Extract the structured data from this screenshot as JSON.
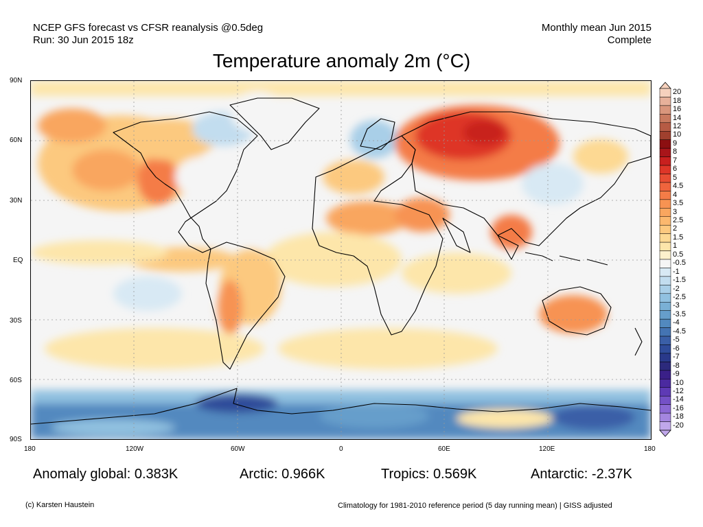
{
  "header": {
    "line1": "NCEP GFS forecast vs CFSR reanalysis @0.5deg",
    "line2": "Run: 30 Jun 2015 18z",
    "right1": "Monthly mean Jun 2015",
    "right2": "Complete"
  },
  "title": "Temperature anomaly 2m (°C)",
  "map": {
    "lat_labels": [
      "90N",
      "60N",
      "30N",
      "EQ",
      "30S",
      "60S",
      "90S"
    ],
    "lon_labels": [
      "180",
      "120W",
      "60W",
      "0",
      "60E",
      "120E",
      "180"
    ]
  },
  "colorbar": {
    "labels": [
      "20",
      "18",
      "16",
      "14",
      "12",
      "10",
      "9",
      "8",
      "7",
      "6",
      "5",
      "4.5",
      "4",
      "3.5",
      "3",
      "2.5",
      "2",
      "1.5",
      "1",
      "0.5",
      "-0.5",
      "-1",
      "-1.5",
      "-2",
      "-2.5",
      "-3",
      "-3.5",
      "-4",
      "-4.5",
      "-5",
      "-6",
      "-7",
      "-8",
      "-9",
      "-10",
      "-12",
      "-14",
      "-16",
      "-18",
      "-20"
    ],
    "colors": [
      "#f6d1bd",
      "#e7b19a",
      "#d9967c",
      "#c97a5f",
      "#b65b44",
      "#a0402e",
      "#8c0f11",
      "#a9151a",
      "#c8201f",
      "#de3628",
      "#e84d33",
      "#ef643d",
      "#f47c47",
      "#f79352",
      "#f9a65f",
      "#fbb86e",
      "#fcc97f",
      "#fdd993",
      "#fde6aa",
      "#fdf1cc",
      "#f5f5f5",
      "#d8e9f4",
      "#c2ddef",
      "#a9cfe8",
      "#91c1e0",
      "#7ab0d5",
      "#669ecb",
      "#5289bf",
      "#4474b3",
      "#3a5fa7",
      "#2f4c9a",
      "#29398a",
      "#2c2a7c",
      "#3a2088",
      "#4b2aa0",
      "#5e3ab5",
      "#7451c6",
      "#8a68d3",
      "#a486df",
      "#c0a7ea"
    ]
  },
  "stats": {
    "global": "Anomaly global: 0.383K",
    "arctic": "Arctic: 0.966K",
    "tropics": "Tropics: 0.569K",
    "antarctic": "Antarctic: -2.37K"
  },
  "footer": {
    "left": "(c) Karsten Haustein",
    "right": "Climatology for 1981-2010 reference period (5 day running mean) | GISS adjusted"
  }
}
